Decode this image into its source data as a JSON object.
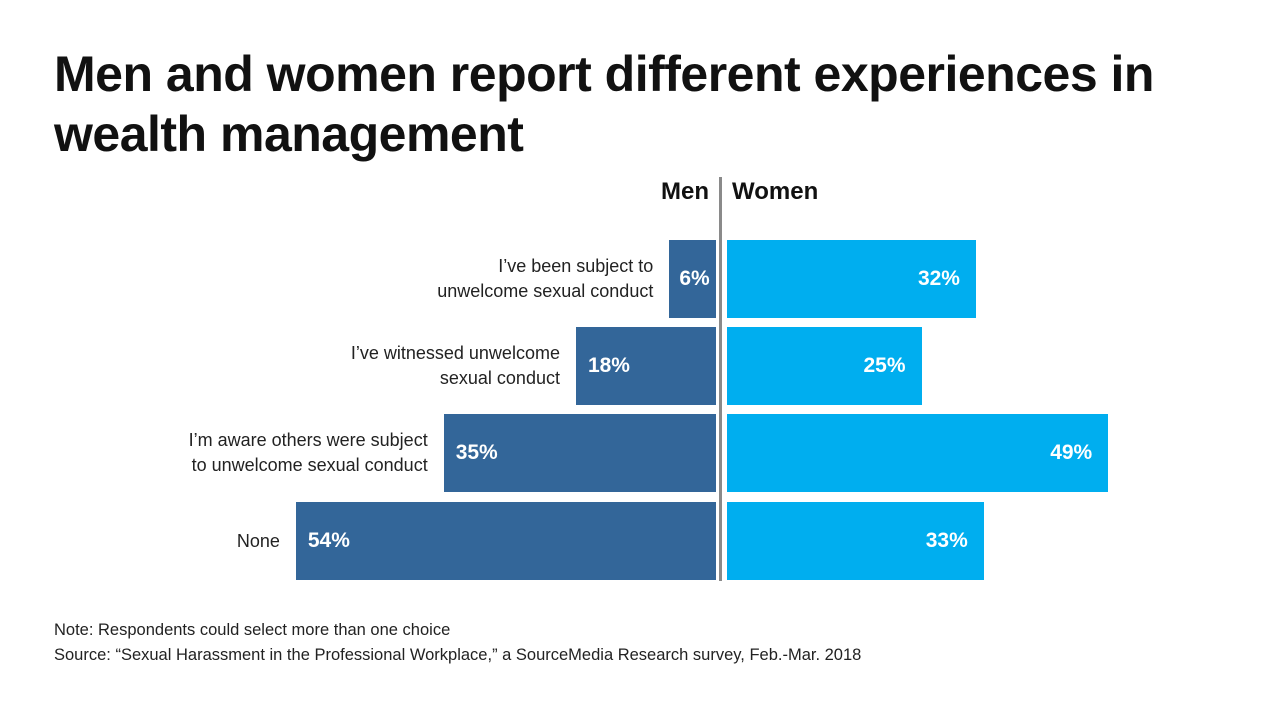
{
  "chart_data": {
    "type": "bar",
    "orientation": "horizontal-diverging",
    "title": "Men and women report different experiences in wealth management",
    "categories": [
      "I’ve been subject to unwelcome sexual conduct",
      "I’ve witnessed unwelcome sexual conduct",
      "I’m aware others were subject to unwelcome sexual conduct",
      "None"
    ],
    "category_lines": [
      [
        "I’ve been subject to",
        "unwelcome sexual conduct"
      ],
      [
        "I’ve witnessed unwelcome",
        "sexual conduct"
      ],
      [
        "I’m aware others were subject",
        "to unwelcome sexual conduct"
      ],
      [
        "None"
      ]
    ],
    "series": [
      {
        "name": "Men",
        "values": [
          6,
          18,
          35,
          54
        ],
        "labels": [
          "6%",
          "18%",
          "35%",
          "54%"
        ],
        "color": "#336699",
        "direction": "left"
      },
      {
        "name": "Women",
        "values": [
          32,
          25,
          49,
          33
        ],
        "labels": [
          "32%",
          "25%",
          "49%",
          "33%"
        ],
        "color": "#00aeef",
        "direction": "right"
      }
    ],
    "unit": "%",
    "grid": false,
    "note": "Note: Respondents could select more than one choice",
    "source": "Source: “Sexual Harassment in the Professional Workplace,” a SourceMedia Research survey, Feb.-Mar. 2018"
  }
}
